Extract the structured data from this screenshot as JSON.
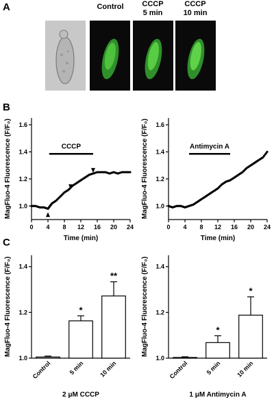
{
  "panel_letters": {
    "a": "A",
    "b": "B",
    "c": "C"
  },
  "images": {
    "labels": [
      {
        "line1": "",
        "line2": ""
      },
      {
        "line1": "Control",
        "line2": ""
      },
      {
        "line1": "CCCP",
        "line2": "5 min"
      },
      {
        "line1": "CCCP",
        "line2": "10 min"
      }
    ]
  },
  "chart_data": [
    {
      "type": "scatter",
      "panel": "B-left",
      "xlabel": "Time (min)",
      "ylabel": "MagFluo-4 Fluorescence (F/F₀)",
      "xlim": [
        0,
        24
      ],
      "ylim": [
        0.9,
        1.65
      ],
      "x_ticks": [
        0,
        4,
        8,
        12,
        16,
        20,
        24
      ],
      "y_ticks": [
        1.0,
        1.2,
        1.4,
        1.6
      ],
      "annotations": [
        {
          "text": "CCCP",
          "bar_x": [
            4.3,
            15.0
          ],
          "bar_y": 1.385
        }
      ],
      "arrows_at_x": [
        4.0,
        9.5,
        15.0
      ],
      "x": [
        0,
        1,
        2,
        3,
        4,
        4.5,
        5,
        6,
        7,
        8,
        9,
        10,
        11,
        12,
        13,
        14,
        15,
        16,
        17,
        18,
        19,
        20,
        21,
        22,
        23,
        24
      ],
      "y": [
        1.0,
        1.0,
        0.99,
        0.99,
        0.98,
        1.0,
        1.02,
        1.04,
        1.07,
        1.1,
        1.12,
        1.15,
        1.17,
        1.19,
        1.21,
        1.23,
        1.24,
        1.25,
        1.25,
        1.25,
        1.24,
        1.25,
        1.24,
        1.25,
        1.25,
        1.25
      ]
    },
    {
      "type": "scatter",
      "panel": "B-right",
      "xlabel": "Time (min)",
      "ylabel": "MagFluo-4 Fluorescence (F/F₀)",
      "xlim": [
        0,
        24
      ],
      "ylim": [
        0.9,
        1.65
      ],
      "x_ticks": [
        0,
        4,
        8,
        12,
        16,
        20,
        24
      ],
      "y_ticks": [
        1.0,
        1.2,
        1.4,
        1.6
      ],
      "annotations": [
        {
          "text": "Antimycin A",
          "bar_x": [
            5.0,
            15.0
          ],
          "bar_y": 1.385
        }
      ],
      "x": [
        0,
        1,
        2,
        3,
        4,
        5,
        6,
        7,
        8,
        9,
        10,
        11,
        12,
        13,
        14,
        15,
        16,
        17,
        18,
        19,
        20,
        21,
        22,
        23,
        24
      ],
      "y": [
        1.0,
        0.99,
        1.0,
        1.0,
        0.99,
        1.0,
        1.01,
        1.03,
        1.05,
        1.07,
        1.09,
        1.11,
        1.13,
        1.16,
        1.18,
        1.19,
        1.21,
        1.23,
        1.25,
        1.28,
        1.3,
        1.32,
        1.34,
        1.36,
        1.4
      ]
    },
    {
      "type": "bar",
      "panel": "C-left",
      "categories": [
        "Control",
        "5 min",
        "10 min"
      ],
      "values": [
        1.005,
        1.163,
        1.272
      ],
      "errors": [
        0.004,
        0.022,
        0.062
      ],
      "significance": [
        "",
        "*",
        "**"
      ],
      "xlabel": "2 μM CCCP",
      "ylabel": "MagFluo-4 Fluorescence (F/F₀)",
      "ylim": [
        1.0,
        1.45
      ],
      "y_ticks": [
        1.0,
        1.2,
        1.4
      ]
    },
    {
      "type": "bar",
      "panel": "C-right",
      "categories": [
        "Control",
        "5 min",
        "10 min"
      ],
      "values": [
        1.003,
        1.068,
        1.188
      ],
      "errors": [
        0.003,
        0.03,
        0.08
      ],
      "significance": [
        "",
        "*",
        "*"
      ],
      "xlabel": "1 μM Antimycin A",
      "ylabel": "MagFluo-4 Fluorescence (F/F₀)",
      "ylim": [
        1.0,
        1.45
      ],
      "y_ticks": [
        1.0,
        1.2,
        1.4
      ]
    }
  ]
}
